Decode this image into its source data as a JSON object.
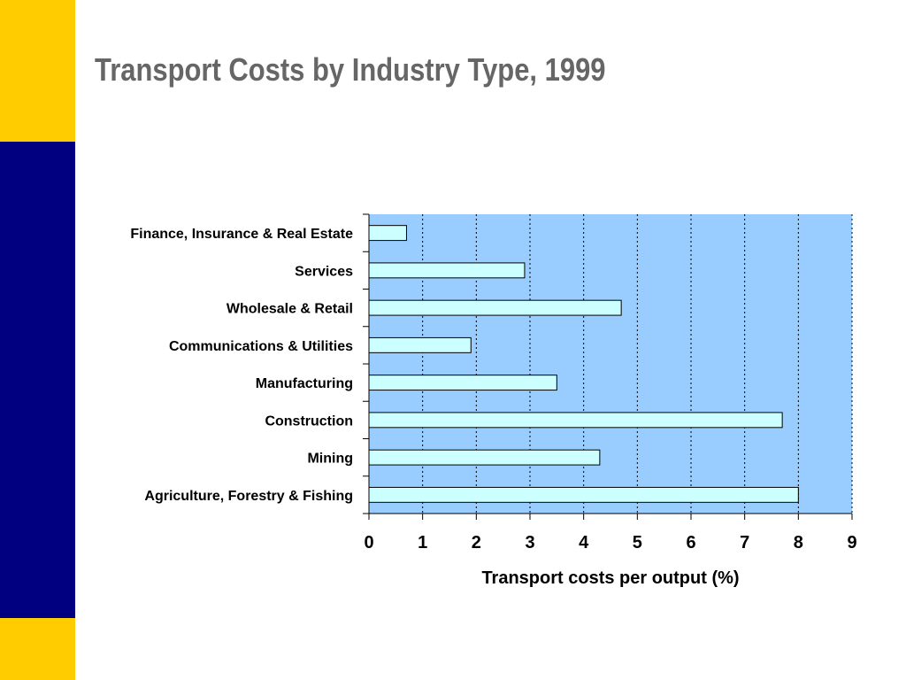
{
  "slide": {
    "title": "Transport Costs by Industry Type, 1999",
    "colors": {
      "band_yellow": "#FFCC00",
      "band_navy": "#000080",
      "title_gray": "#666666"
    }
  },
  "chart_data": {
    "type": "bar",
    "orientation": "horizontal",
    "categories": [
      "Finance, Insurance & Real Estate",
      "Services",
      "Wholesale & Retail",
      "Communications & Utilities",
      "Manufacturing",
      "Construction",
      "Mining",
      "Agriculture, Forestry & Fishing"
    ],
    "values": [
      0.7,
      2.9,
      4.7,
      1.9,
      3.5,
      7.7,
      4.3,
      8.0
    ],
    "xlabel": "Transport costs per output (%)",
    "ylabel": "",
    "xlim": [
      0,
      9
    ],
    "xticks": [
      "0",
      "1",
      "2",
      "3",
      "4",
      "5",
      "6",
      "7",
      "8",
      "9"
    ],
    "grid": "vertical-dotted",
    "colors": {
      "plot_background": "#99CCFF",
      "bar_fill": "#CCFFFF",
      "bar_stroke": "#000000"
    }
  }
}
